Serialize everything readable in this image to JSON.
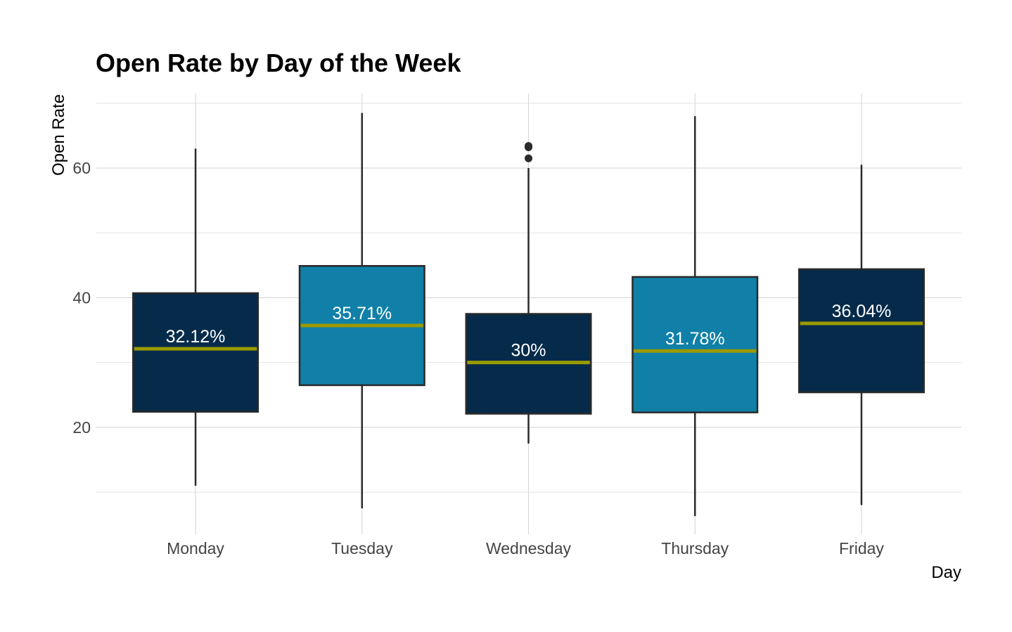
{
  "chart_data": {
    "type": "boxplot",
    "title": "Open Rate by Day of the Week",
    "xlabel": "Day",
    "ylabel": "Open Rate",
    "categories": [
      "Monday",
      "Tuesday",
      "Wednesday",
      "Thursday",
      "Friday"
    ],
    "ylim": [
      3.5,
      71.5
    ],
    "yticks": [
      20,
      40,
      60
    ],
    "grid": true,
    "legend": "none",
    "median_color": "#9a9a00",
    "box_outline_color": "#2a2a2a",
    "boxes": [
      {
        "category": "Monday",
        "whisker_low": 11,
        "q1": 22.4,
        "median": 32.12,
        "q3": 40.7,
        "whisker_high": 63,
        "outliers": [],
        "fill": "#062b4a",
        "label": "32.12%"
      },
      {
        "category": "Tuesday",
        "whisker_low": 7.5,
        "q1": 26.5,
        "median": 35.71,
        "q3": 44.9,
        "whisker_high": 68.5,
        "outliers": [],
        "fill": "#1080a8",
        "label": "35.71%"
      },
      {
        "category": "Wednesday",
        "whisker_low": 17.5,
        "q1": 22.1,
        "median": 30.0,
        "q3": 37.5,
        "whisker_high": 60,
        "outliers": [
          61.5,
          63.2,
          63.4
        ],
        "fill": "#062b4a",
        "label": "30%"
      },
      {
        "category": "Thursday",
        "whisker_low": 6.3,
        "q1": 22.3,
        "median": 31.78,
        "q3": 43.2,
        "whisker_high": 68,
        "outliers": [],
        "fill": "#1080a8",
        "label": "31.78%"
      },
      {
        "category": "Friday",
        "whisker_low": 8.0,
        "q1": 25.4,
        "median": 36.04,
        "q3": 44.4,
        "whisker_high": 60.5,
        "outliers": [],
        "fill": "#062b4a",
        "label": "36.04%"
      }
    ]
  }
}
